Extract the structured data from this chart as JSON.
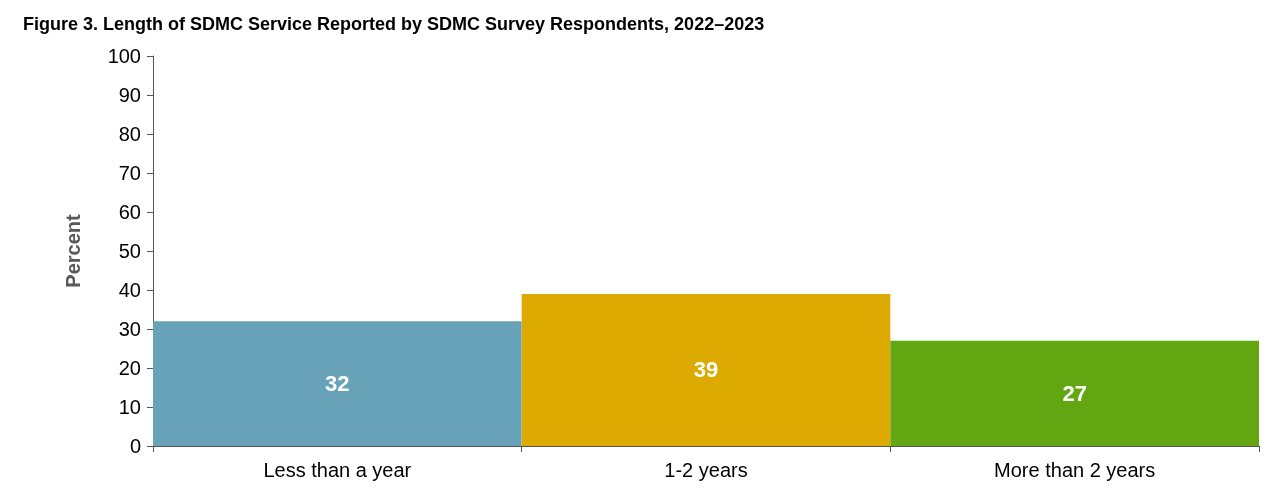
{
  "chart_data": {
    "type": "bar",
    "title": "Figure 3. Length of SDMC Service Reported by SDMC Survey Respondents, 2022–2023",
    "ylabel": "Percent",
    "categories": [
      "Less than a year",
      "1-2 years",
      "More than 2 years"
    ],
    "values": [
      32,
      39,
      27
    ],
    "colors": [
      "#67a2b9",
      "#dcaa00",
      "#62a612"
    ],
    "ylim": [
      0,
      100
    ],
    "yticks": [
      0,
      10,
      20,
      30,
      40,
      50,
      60,
      70,
      80,
      90,
      100
    ],
    "grid": false,
    "data_labels": true
  }
}
